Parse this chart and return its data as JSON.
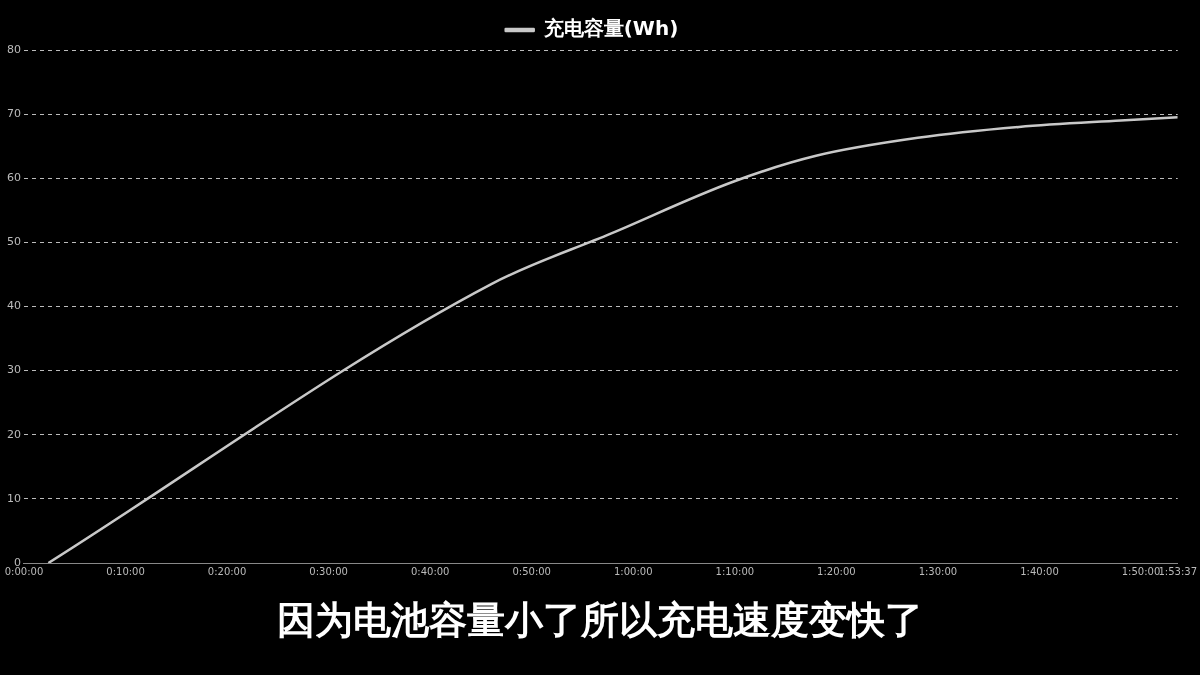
{
  "chart_data": {
    "type": "line",
    "legend": "top",
    "grid": "y",
    "marker": "none",
    "line_style": "solid",
    "x": [
      0.04,
      0.767,
      0.964,
      1.165,
      1.3,
      1.467,
      1.633,
      1.8,
      1.8936
    ],
    "series": [
      {
        "name": "充电容量(Wh)",
        "color": "#c8c8c8",
        "values": [
          0,
          43.5,
          51.4,
          59.5,
          63.5,
          66.3,
          68,
          69,
          69.5
        ]
      }
    ],
    "xlim": [
      0,
      1.8936
    ],
    "xticks": [
      {
        "value": 0,
        "label": "0:00:00"
      },
      {
        "value": 0.1667,
        "label": "0:10:00"
      },
      {
        "value": 0.3333,
        "label": "0:20:00"
      },
      {
        "value": 0.5,
        "label": "0:30:00"
      },
      {
        "value": 0.6667,
        "label": "0:40:00"
      },
      {
        "value": 0.8333,
        "label": "0:50:00"
      },
      {
        "value": 1,
        "label": "1:00:00"
      },
      {
        "value": 1.1667,
        "label": "1:10:00"
      },
      {
        "value": 1.3333,
        "label": "1:20:00"
      },
      {
        "value": 1.5,
        "label": "1:30:00"
      },
      {
        "value": 1.6667,
        "label": "1:40:00"
      },
      {
        "value": 1.8333,
        "label": "1:50:00"
      },
      {
        "value": 1.8936,
        "label": "1:53:37"
      }
    ],
    "ylim": [
      0,
      80
    ],
    "yticks": [
      0,
      10,
      20,
      30,
      40,
      50,
      60,
      70,
      80
    ],
    "annotations": [
      "因为电池容量小了所以充电速度变快了"
    ]
  }
}
